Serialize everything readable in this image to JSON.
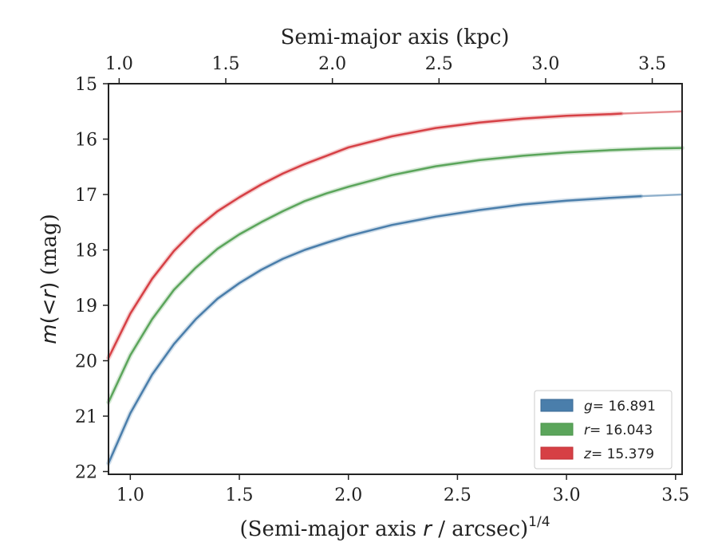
{
  "chart_data": {
    "type": "line",
    "title": "",
    "xlabel": "(Semi-major axis r / arcsec)^{1/4}",
    "xlabel_parts": {
      "prefix": "(Semi-major axis ",
      "var": "r",
      "suffix": " / arcsec)",
      "sup": "1/4"
    },
    "x2label": "Semi-major axis (kpc)",
    "ylabel": "m(< r) (mag)",
    "ylabel_parts": {
      "m": "m",
      "open": "(",
      "lt": "<",
      "r": "r",
      "close": ")",
      "unit": " (mag)"
    },
    "xlim": [
      0.9,
      3.53
    ],
    "ylim": [
      22.05,
      15.0
    ],
    "x2lim": [
      0.95,
      3.64
    ],
    "x_ticks": [
      1.0,
      1.5,
      2.0,
      2.5,
      3.0,
      3.5
    ],
    "x_tick_labels": [
      "1.0",
      "1.5",
      "2.0",
      "2.5",
      "3.0",
      "3.5"
    ],
    "y_ticks": [
      15,
      16,
      17,
      18,
      19,
      20,
      21,
      22
    ],
    "y_tick_labels": [
      "15",
      "16",
      "17",
      "18",
      "19",
      "20",
      "21",
      "22"
    ],
    "x2_ticks": [
      1.0,
      1.5,
      2.0,
      2.5,
      3.0,
      3.5
    ],
    "x2_tick_labels": [
      "1.0",
      "1.5",
      "2.0",
      "2.5",
      "3.0",
      "3.5"
    ],
    "legend_position": "lower-right",
    "series": [
      {
        "name": "g",
        "label_var": "g",
        "label_value": "= 16.891",
        "color": "#4a7eab",
        "x": [
          0.9,
          1.0,
          1.1,
          1.2,
          1.3,
          1.4,
          1.5,
          1.6,
          1.7,
          1.8,
          1.9,
          2.0,
          2.2,
          2.4,
          2.6,
          2.8,
          3.0,
          3.2,
          3.34
        ],
        "y": [
          21.85,
          20.95,
          20.25,
          19.7,
          19.25,
          18.88,
          18.6,
          18.36,
          18.16,
          18.0,
          17.87,
          17.75,
          17.55,
          17.4,
          17.28,
          17.18,
          17.11,
          17.06,
          17.03
        ],
        "ext_x": [
          3.34,
          3.53
        ],
        "ext_y": [
          17.03,
          17.0
        ]
      },
      {
        "name": "r",
        "label_var": "r",
        "label_value": "= 16.043",
        "color": "#5ba55b",
        "x": [
          0.9,
          1.0,
          1.1,
          1.2,
          1.3,
          1.4,
          1.5,
          1.6,
          1.7,
          1.8,
          1.9,
          2.0,
          2.2,
          2.4,
          2.6,
          2.8,
          3.0,
          3.2,
          3.4,
          3.53
        ],
        "y": [
          20.75,
          19.9,
          19.25,
          18.72,
          18.32,
          17.98,
          17.72,
          17.5,
          17.3,
          17.12,
          16.98,
          16.86,
          16.65,
          16.49,
          16.38,
          16.3,
          16.24,
          16.2,
          16.17,
          16.16
        ],
        "ext_x": [],
        "ext_y": []
      },
      {
        "name": "z",
        "label_var": "z",
        "label_value": "= 15.379",
        "color": "#d64045",
        "x": [
          0.9,
          1.0,
          1.1,
          1.2,
          1.3,
          1.4,
          1.5,
          1.6,
          1.7,
          1.8,
          1.9,
          2.0,
          2.2,
          2.4,
          2.6,
          2.8,
          3.0,
          3.2,
          3.25
        ],
        "y": [
          19.95,
          19.15,
          18.52,
          18.02,
          17.62,
          17.3,
          17.05,
          16.82,
          16.62,
          16.45,
          16.3,
          16.15,
          15.95,
          15.8,
          15.7,
          15.63,
          15.58,
          15.55,
          15.54
        ],
        "ext_x": [
          3.25,
          3.53
        ],
        "ext_y": [
          15.54,
          15.5
        ]
      }
    ]
  }
}
